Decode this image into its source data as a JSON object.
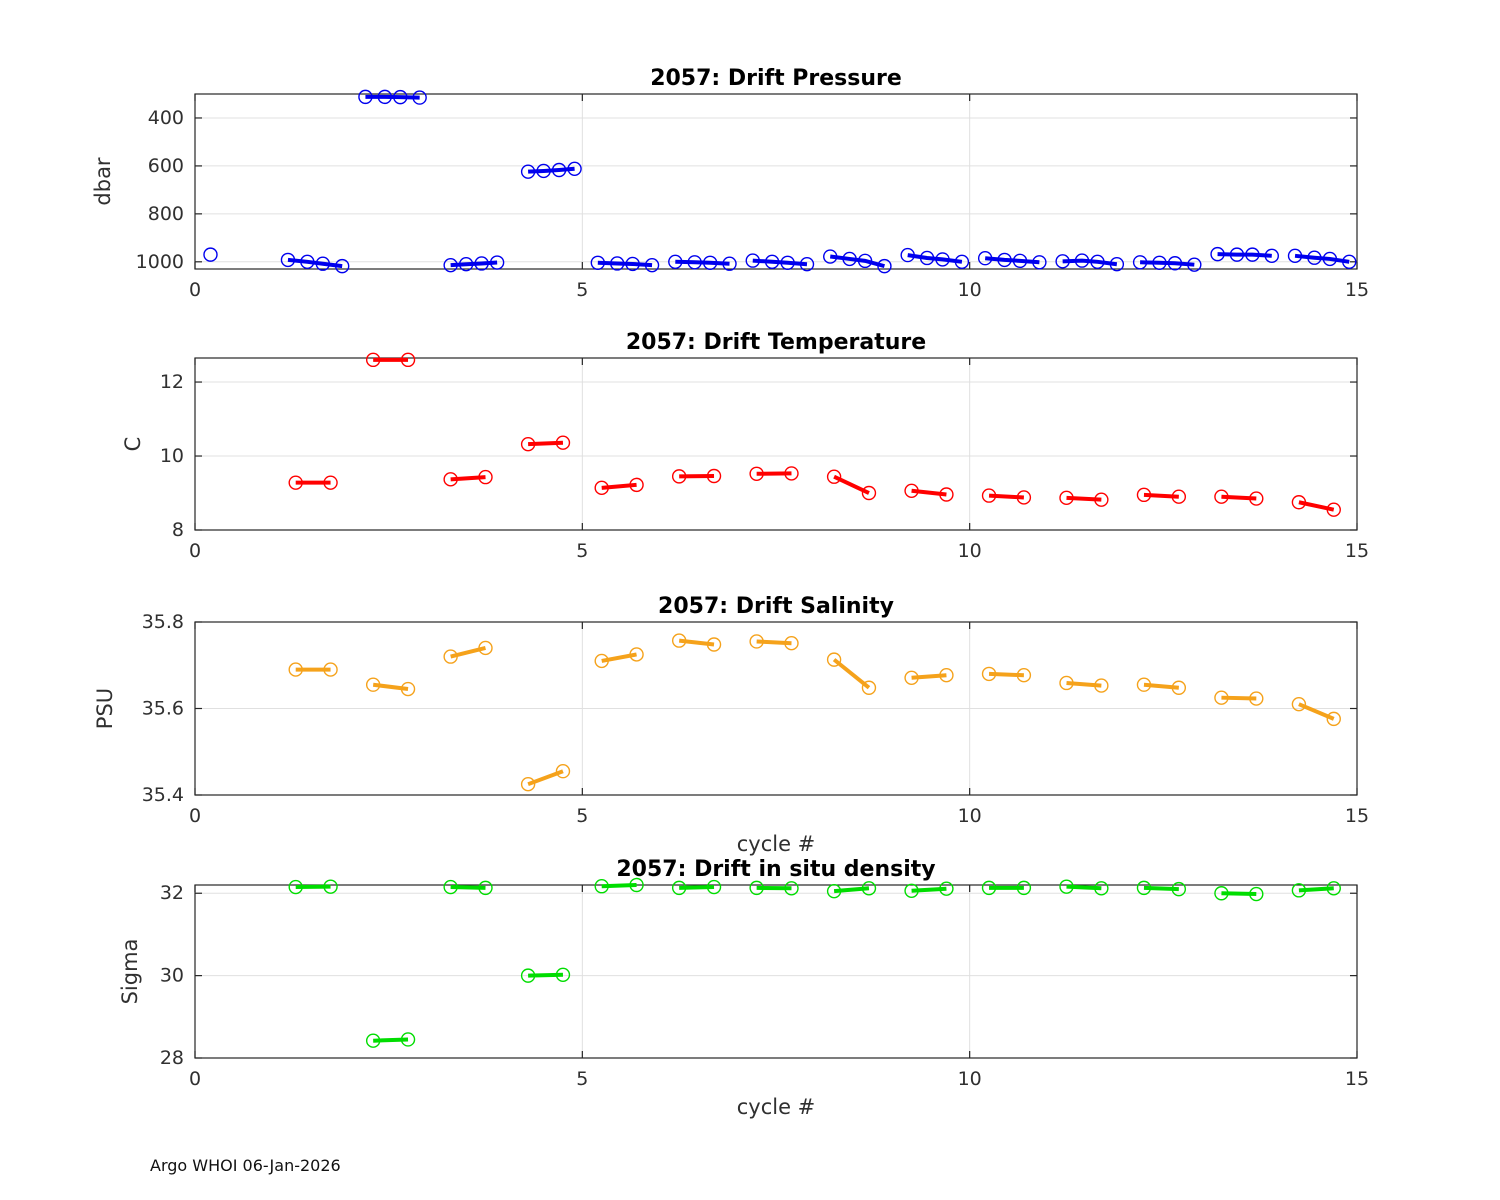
{
  "footer": {
    "credit": "Argo WHOI 06-Jan-2026"
  },
  "chart_data": [
    {
      "type": "line",
      "title": "2057: Drift Pressure",
      "ylabel": "dbar",
      "xlabel": "",
      "color": "#0000EE",
      "xlim": [
        0,
        15
      ],
      "xticks": [
        0,
        5,
        10,
        15
      ],
      "ylim": [
        300,
        1030
      ],
      "y_reversed": true,
      "yticks": [
        400,
        600,
        800,
        1000
      ],
      "grid": true,
      "legend": "none",
      "segments": [
        {
          "x": [
            0.2
          ],
          "y": [
            970
          ]
        },
        {
          "x": [
            1.2,
            1.45,
            1.65,
            1.9
          ],
          "y": [
            992,
            1000,
            1008,
            1018
          ]
        },
        {
          "x": [
            2.2,
            2.45,
            2.65,
            2.9
          ],
          "y": [
            312,
            312,
            313,
            315
          ]
        },
        {
          "x": [
            3.3,
            3.5,
            3.7,
            3.9
          ],
          "y": [
            1014,
            1010,
            1007,
            1003
          ]
        },
        {
          "x": [
            4.3,
            4.5,
            4.7,
            4.9
          ],
          "y": [
            624,
            621,
            617,
            612
          ]
        },
        {
          "x": [
            5.2,
            5.45,
            5.65,
            5.9
          ],
          "y": [
            1004,
            1007,
            1009,
            1014
          ]
        },
        {
          "x": [
            6.2,
            6.45,
            6.65,
            6.9
          ],
          "y": [
            1000,
            1002,
            1004,
            1008
          ]
        },
        {
          "x": [
            7.2,
            7.45,
            7.65,
            7.9
          ],
          "y": [
            995,
            1000,
            1004,
            1010
          ]
        },
        {
          "x": [
            8.2,
            8.45,
            8.65,
            8.9
          ],
          "y": [
            978,
            988,
            996,
            1018
          ]
        },
        {
          "x": [
            9.2,
            9.45,
            9.65,
            9.9
          ],
          "y": [
            972,
            984,
            990,
            1000
          ]
        },
        {
          "x": [
            10.2,
            10.45,
            10.65,
            10.9
          ],
          "y": [
            985,
            992,
            996,
            1002
          ]
        },
        {
          "x": [
            11.2,
            11.45,
            11.65,
            11.9
          ],
          "y": [
            998,
            995,
            1000,
            1010
          ]
        },
        {
          "x": [
            12.2,
            12.45,
            12.65,
            12.9
          ],
          "y": [
            1002,
            1004,
            1006,
            1012
          ]
        },
        {
          "x": [
            13.2,
            13.45,
            13.65,
            13.9
          ],
          "y": [
            968,
            970,
            970,
            975
          ]
        },
        {
          "x": [
            14.2,
            14.45,
            14.65,
            14.9
          ],
          "y": [
            975,
            983,
            988,
            1000
          ]
        }
      ]
    },
    {
      "type": "line",
      "title": "2057: Drift Temperature",
      "ylabel": "C",
      "xlabel": "",
      "color": "#FF0000",
      "xlim": [
        0,
        15
      ],
      "xticks": [
        0,
        5,
        10,
        15
      ],
      "ylim": [
        8,
        12.65
      ],
      "y_reversed": false,
      "yticks": [
        8,
        10,
        12
      ],
      "grid": true,
      "legend": "none",
      "segments": [
        {
          "x": [
            1.3,
            1.75
          ],
          "y": [
            9.28,
            9.28
          ]
        },
        {
          "x": [
            2.3,
            2.75
          ],
          "y": [
            12.6,
            12.6
          ]
        },
        {
          "x": [
            3.3,
            3.75
          ],
          "y": [
            9.37,
            9.43
          ]
        },
        {
          "x": [
            4.3,
            4.75
          ],
          "y": [
            10.32,
            10.36
          ]
        },
        {
          "x": [
            5.25,
            5.7
          ],
          "y": [
            9.14,
            9.22
          ]
        },
        {
          "x": [
            6.25,
            6.7
          ],
          "y": [
            9.45,
            9.46
          ]
        },
        {
          "x": [
            7.25,
            7.7
          ],
          "y": [
            9.52,
            9.53
          ]
        },
        {
          "x": [
            8.25,
            8.7
          ],
          "y": [
            9.44,
            9.0
          ]
        },
        {
          "x": [
            9.25,
            9.7
          ],
          "y": [
            9.06,
            8.96
          ]
        },
        {
          "x": [
            10.25,
            10.7
          ],
          "y": [
            8.93,
            8.88
          ]
        },
        {
          "x": [
            11.25,
            11.7
          ],
          "y": [
            8.87,
            8.82
          ]
        },
        {
          "x": [
            12.25,
            12.7
          ],
          "y": [
            8.95,
            8.9
          ]
        },
        {
          "x": [
            13.25,
            13.7
          ],
          "y": [
            8.9,
            8.85
          ]
        },
        {
          "x": [
            14.25,
            14.7
          ],
          "y": [
            8.75,
            8.55
          ]
        }
      ]
    },
    {
      "type": "line",
      "title": "2057: Drift Salinity",
      "ylabel": "PSU",
      "xlabel": "cycle #",
      "color": "#F5A21B",
      "xlim": [
        0,
        15
      ],
      "xticks": [
        0,
        5,
        10,
        15
      ],
      "ylim": [
        35.4,
        35.8
      ],
      "y_reversed": false,
      "yticks": [
        35.4,
        35.6,
        35.8
      ],
      "grid": true,
      "legend": "none",
      "segments": [
        {
          "x": [
            1.3,
            1.75
          ],
          "y": [
            35.69,
            35.69
          ]
        },
        {
          "x": [
            2.3,
            2.75
          ],
          "y": [
            35.655,
            35.645
          ]
        },
        {
          "x": [
            3.3,
            3.75
          ],
          "y": [
            35.72,
            35.74
          ]
        },
        {
          "x": [
            4.3,
            4.75
          ],
          "y": [
            35.425,
            35.455
          ]
        },
        {
          "x": [
            5.25,
            5.7
          ],
          "y": [
            35.71,
            35.725
          ]
        },
        {
          "x": [
            6.25,
            6.7
          ],
          "y": [
            35.757,
            35.748
          ]
        },
        {
          "x": [
            7.25,
            7.7
          ],
          "y": [
            35.755,
            35.751
          ]
        },
        {
          "x": [
            8.25,
            8.7
          ],
          "y": [
            35.713,
            35.648
          ]
        },
        {
          "x": [
            9.25,
            9.7
          ],
          "y": [
            35.671,
            35.677
          ]
        },
        {
          "x": [
            10.25,
            10.7
          ],
          "y": [
            35.68,
            35.677
          ]
        },
        {
          "x": [
            11.25,
            11.7
          ],
          "y": [
            35.659,
            35.653
          ]
        },
        {
          "x": [
            12.25,
            12.7
          ],
          "y": [
            35.655,
            35.648
          ]
        },
        {
          "x": [
            13.25,
            13.7
          ],
          "y": [
            35.625,
            35.623
          ]
        },
        {
          "x": [
            14.25,
            14.7
          ],
          "y": [
            35.61,
            35.576
          ]
        }
      ]
    },
    {
      "type": "line",
      "title": "2057: Drift in situ density",
      "ylabel": "Sigma",
      "xlabel": "cycle #",
      "color": "#00DD00",
      "xlim": [
        0,
        15
      ],
      "xticks": [
        0,
        5,
        10,
        15
      ],
      "ylim": [
        28,
        32.2
      ],
      "y_reversed": false,
      "yticks": [
        28,
        30,
        32
      ],
      "grid": true,
      "legend": "none",
      "segments": [
        {
          "x": [
            1.3,
            1.75
          ],
          "y": [
            32.15,
            32.16
          ]
        },
        {
          "x": [
            2.3,
            2.75
          ],
          "y": [
            28.42,
            28.45
          ]
        },
        {
          "x": [
            3.3,
            3.75
          ],
          "y": [
            32.15,
            32.13
          ]
        },
        {
          "x": [
            4.3,
            4.75
          ],
          "y": [
            30.0,
            30.02
          ]
        },
        {
          "x": [
            5.25,
            5.7
          ],
          "y": [
            32.17,
            32.2
          ]
        },
        {
          "x": [
            6.25,
            6.7
          ],
          "y": [
            32.13,
            32.15
          ]
        },
        {
          "x": [
            7.25,
            7.7
          ],
          "y": [
            32.13,
            32.12
          ]
        },
        {
          "x": [
            8.25,
            8.7
          ],
          "y": [
            32.05,
            32.12
          ]
        },
        {
          "x": [
            9.25,
            9.7
          ],
          "y": [
            32.06,
            32.11
          ]
        },
        {
          "x": [
            10.25,
            10.7
          ],
          "y": [
            32.13,
            32.13
          ]
        },
        {
          "x": [
            11.25,
            11.7
          ],
          "y": [
            32.16,
            32.12
          ]
        },
        {
          "x": [
            12.25,
            12.7
          ],
          "y": [
            32.13,
            32.1
          ]
        },
        {
          "x": [
            13.25,
            13.7
          ],
          "y": [
            32.0,
            31.98
          ]
        },
        {
          "x": [
            14.25,
            14.7
          ],
          "y": [
            32.07,
            32.12
          ]
        }
      ]
    }
  ]
}
